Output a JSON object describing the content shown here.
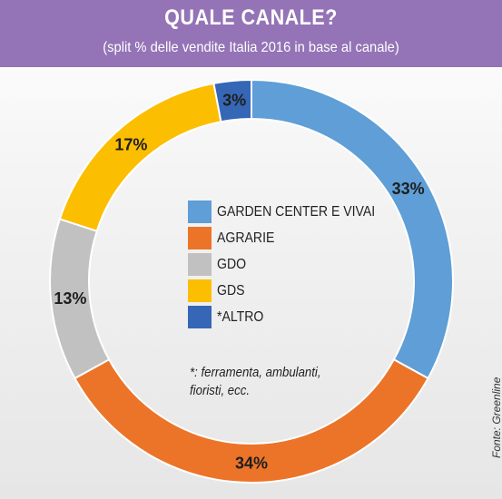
{
  "header": {
    "title": "QUALE CANALE?",
    "subtitle": "(split % delle vendite Italia 2016 in base al canale)"
  },
  "chart_data": {
    "type": "pie",
    "variant": "donut",
    "unit": "%",
    "slices": [
      {
        "label": "GARDEN CENTER E VIVAI",
        "value": 33,
        "color": "#5f9ed6"
      },
      {
        "label": "AGRARIE",
        "value": 34,
        "color": "#ec7428"
      },
      {
        "label": "GDO",
        "value": 13,
        "color": "#c1c1c1"
      },
      {
        "label": "GDS",
        "value": 17,
        "color": "#fcbe00"
      },
      {
        "label": "*ALTRO",
        "value": 3,
        "color": "#3667b6"
      }
    ],
    "legend_placement": "center"
  },
  "footnote": "*: ferramenta, ambulanti, fioristi, ecc.",
  "source": "Fonte: Greenline"
}
